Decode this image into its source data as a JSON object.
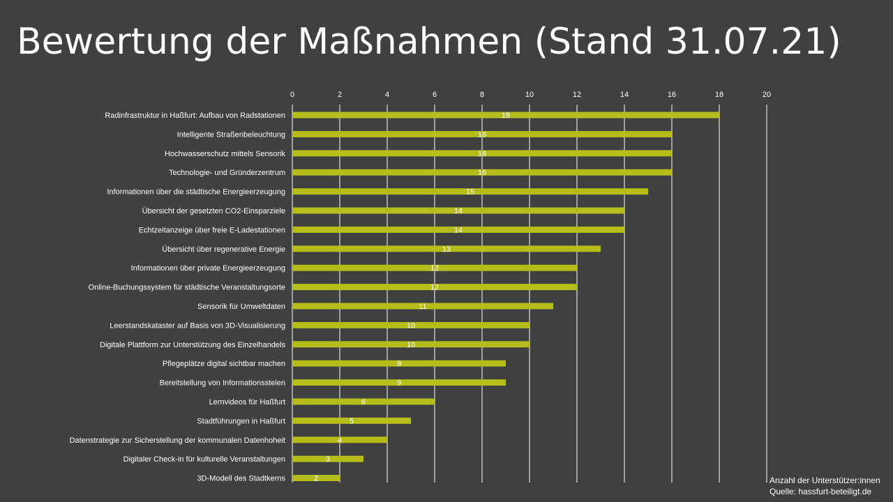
{
  "title": "Bewertung der Maßnahmen (Stand 31.07.21)",
  "footnote": {
    "line1": "Anzahl der Unterstützer:innen",
    "line2": "Quelle: hassfurt-beteiligt.de"
  },
  "colors": {
    "background": "#404040",
    "bar": "#b5bd1b",
    "grid": "#ffffff",
    "text": "#ffffff"
  },
  "chart_data": {
    "type": "bar",
    "orientation": "horizontal",
    "categories": [
      "Radinfrastruktur in Haßfurt: Aufbau von Radstationen",
      "Intelligente Straßenbeleuchtung",
      "Hochwasserschutz mittels Sensorik",
      "Technologie- und Gründerzentrum",
      "Informationen über die städtische Energieerzeugung",
      "Übersicht der gesetzten CO2-Einsparziele",
      "Echtzeitanzeige über freie E-Ladestationen",
      "Übersicht über regenerative Energie",
      "Informationen über private Energieerzeugung",
      "Online-Buchungssystem für städtische Veranstaltungsorte",
      "Sensorik für Umweltdaten",
      "Leerstandskataster auf Basis von 3D-Visualisierung",
      "Digitale Plattform zur Unterstützung des Einzelhandels",
      "Pflegeplätze digital sichtbar machen",
      "Bereitstellung von Informationsstelen",
      "Lernvideos für Haßfurt",
      "Stadtführungen in Haßfurt",
      "Datenstrategie zur Sicherstellung der kommunalen Datenhoheit",
      "Digitaler Check-in für kulturelle Veranstaltungen",
      "3D-Modell des Stadtkerns"
    ],
    "values": [
      18,
      16,
      16,
      16,
      15,
      14,
      14,
      13,
      12,
      12,
      11,
      10,
      10,
      9,
      9,
      6,
      5,
      4,
      3,
      2
    ],
    "xlim": [
      0,
      20
    ],
    "xticks": [
      0,
      2,
      4,
      6,
      8,
      10,
      12,
      14,
      16,
      18,
      20
    ],
    "xaxis_position": "top",
    "grid": true,
    "data_labels": true
  }
}
